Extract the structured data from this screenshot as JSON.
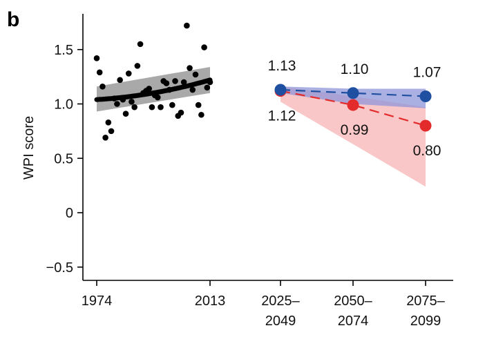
{
  "panel_label": "b",
  "chart_data": {
    "type": "scatter",
    "ylabel": "WPI score",
    "xlabel": "",
    "ylim": [
      -0.6,
      1.85
    ],
    "grid": false,
    "legend": "none",
    "y_ticks": [
      -0.5,
      0,
      0.5,
      1.0,
      1.5
    ],
    "y_tick_labels": [
      "−0.5",
      "0",
      "0.5",
      "1.0",
      "1.5"
    ],
    "x_tick_labels": [
      {
        "lines": [
          "1974"
        ]
      },
      {
        "lines": [
          "2013"
        ]
      },
      {
        "lines": [
          "2025–",
          "2049"
        ]
      },
      {
        "lines": [
          "2050–",
          "2074"
        ]
      },
      {
        "lines": [
          "2075–",
          "2099"
        ]
      }
    ],
    "colors": {
      "observed": "#000000",
      "ci_observed": "#a9a9a9",
      "blue": "#1f4fa0",
      "blue_band": "#8f96d8",
      "red": "#e32b2b",
      "red_band": "#f6a9a9"
    },
    "observed": {
      "years": [
        1974,
        1975,
        1976,
        1977,
        1978,
        1979,
        1980,
        1981,
        1982,
        1983,
        1984,
        1985,
        1986,
        1987,
        1988,
        1989,
        1990,
        1991,
        1992,
        1993,
        1994,
        1995,
        1996,
        1997,
        1998,
        1999,
        2000,
        2001,
        2002,
        2003,
        2004,
        2005,
        2006,
        2007,
        2008,
        2009,
        2010,
        2011,
        2012,
        2013
      ],
      "values": [
        1.42,
        1.29,
        1.16,
        0.69,
        0.83,
        0.75,
        1.05,
        1.0,
        1.22,
        1.04,
        0.91,
        1.28,
        1.02,
        0.97,
        1.35,
        1.55,
        1.1,
        1.12,
        1.14,
        0.97,
        1.08,
        1.06,
        0.97,
        1.21,
        1.19,
        1.13,
        0.99,
        1.21,
        0.89,
        0.92,
        1.2,
        1.72,
        1.33,
        1.13,
        1.27,
        0.99,
        0.9,
        1.52,
        1.15,
        1.2
      ],
      "trend_start": 1.04,
      "trend_end": 1.22,
      "ci_start": [
        0.93,
        1.16
      ],
      "ci_end": [
        1.1,
        1.34
      ]
    },
    "future_categories": [
      "2025–2049",
      "2050–2074",
      "2075–2099"
    ],
    "series": [
      {
        "key": "blue",
        "values": [
          1.13,
          1.1,
          1.07
        ],
        "labels": [
          "1.13",
          "1.10",
          "1.07"
        ],
        "band_low": [
          1.1,
          1.0,
          0.96
        ],
        "band_high": [
          1.16,
          1.14,
          1.14
        ]
      },
      {
        "key": "red",
        "values": [
          1.12,
          0.99,
          0.8
        ],
        "labels": [
          "1.12",
          "0.99",
          "0.80"
        ],
        "band_low": [
          1.02,
          0.63,
          0.24
        ],
        "band_high": [
          1.16,
          1.07,
          0.97
        ]
      }
    ]
  }
}
